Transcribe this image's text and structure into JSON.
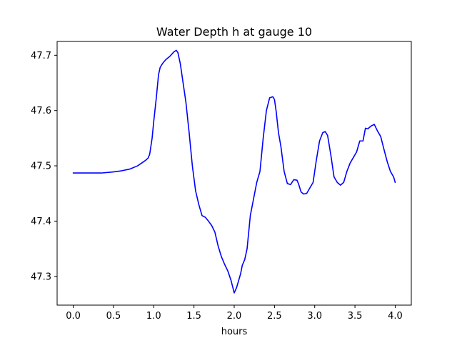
{
  "chart_data": {
    "type": "line",
    "title": "Water Depth h at gauge 10",
    "xlabel": "hours",
    "ylabel": "",
    "xlim": [
      -0.2,
      4.2
    ],
    "ylim": [
      47.248,
      47.725
    ],
    "grid": false,
    "xticks": [
      0.0,
      0.5,
      1.0,
      1.5,
      2.0,
      2.5,
      3.0,
      3.5,
      4.0
    ],
    "xtick_labels": [
      "0.0",
      "0.5",
      "1.0",
      "1.5",
      "2.0",
      "2.5",
      "3.0",
      "3.5",
      "4.0"
    ],
    "yticks": [
      47.3,
      47.4,
      47.5,
      47.6,
      47.7
    ],
    "ytick_labels": [
      "47.3",
      "47.4",
      "47.5",
      "47.6",
      "47.7"
    ],
    "series": [
      {
        "color": "#0000ff",
        "x": [
          0.0,
          0.2,
          0.35,
          0.5,
          0.6,
          0.7,
          0.8,
          0.85,
          0.9,
          0.93,
          0.95,
          0.98,
          1.0,
          1.03,
          1.06,
          1.08,
          1.1,
          1.12,
          1.15,
          1.2,
          1.25,
          1.28,
          1.3,
          1.33,
          1.36,
          1.4,
          1.44,
          1.48,
          1.52,
          1.56,
          1.6,
          1.64,
          1.68,
          1.72,
          1.76,
          1.8,
          1.84,
          1.88,
          1.92,
          1.96,
          2.0,
          2.03,
          2.05,
          2.08,
          2.1,
          2.13,
          2.16,
          2.2,
          2.24,
          2.28,
          2.32,
          2.36,
          2.4,
          2.44,
          2.48,
          2.5,
          2.52,
          2.55,
          2.58,
          2.62,
          2.66,
          2.7,
          2.74,
          2.78,
          2.8,
          2.83,
          2.86,
          2.9,
          2.94,
          2.98,
          3.02,
          3.06,
          3.1,
          3.13,
          3.16,
          3.2,
          3.24,
          3.28,
          3.32,
          3.36,
          3.4,
          3.44,
          3.48,
          3.52,
          3.56,
          3.6,
          3.63,
          3.66,
          3.7,
          3.74,
          3.78,
          3.82,
          3.86,
          3.9,
          3.94,
          3.98,
          4.0
        ],
        "y": [
          47.487,
          47.487,
          47.487,
          47.489,
          47.491,
          47.494,
          47.5,
          47.505,
          47.51,
          47.514,
          47.521,
          47.55,
          47.58,
          47.62,
          47.665,
          47.678,
          47.683,
          47.687,
          47.692,
          47.698,
          47.706,
          47.709,
          47.705,
          47.685,
          47.655,
          47.615,
          47.56,
          47.5,
          47.455,
          47.43,
          47.41,
          47.407,
          47.4,
          47.392,
          47.38,
          47.355,
          47.336,
          47.322,
          47.31,
          47.293,
          47.27,
          47.28,
          47.29,
          47.305,
          47.32,
          47.33,
          47.35,
          47.41,
          47.44,
          47.47,
          47.49,
          47.55,
          47.6,
          47.623,
          47.625,
          47.62,
          47.6,
          47.56,
          47.535,
          47.49,
          47.468,
          47.466,
          47.475,
          47.474,
          47.467,
          47.453,
          47.449,
          47.45,
          47.46,
          47.47,
          47.51,
          47.545,
          47.56,
          47.562,
          47.555,
          47.52,
          47.48,
          47.47,
          47.465,
          47.47,
          47.49,
          47.505,
          47.515,
          47.525,
          47.545,
          47.545,
          47.568,
          47.567,
          47.572,
          47.575,
          47.563,
          47.553,
          47.53,
          47.508,
          47.49,
          47.48,
          47.47
        ]
      }
    ]
  }
}
